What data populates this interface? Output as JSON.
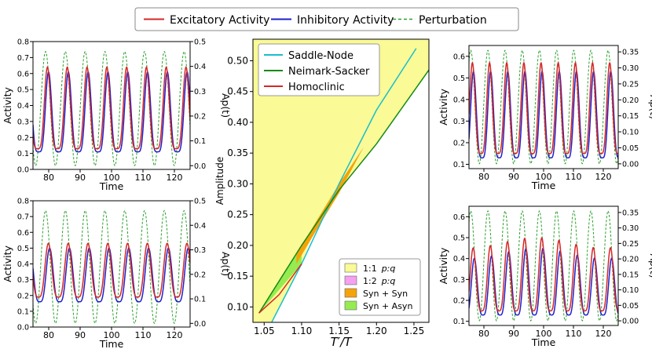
{
  "figure_legend": {
    "entries": [
      {
        "label": "Excitatory Activity",
        "color": "#d62728",
        "style": "solid"
      },
      {
        "label": "Inhibitory Activity",
        "color": "#1f1fcc",
        "style": "solid"
      },
      {
        "label": "Perturbation",
        "color": "#2ca02c",
        "style": "dashed"
      }
    ],
    "placement": "top-center"
  },
  "chart_data": [
    {
      "id": "top-left",
      "type": "line",
      "xlabel": "Time",
      "ylabel": "Activity",
      "y2label": "Ap(t)",
      "xlim": [
        75,
        125
      ],
      "ylim": [
        0.0,
        0.8
      ],
      "y2lim": [
        -0.015,
        0.5
      ],
      "xticks": [
        "80",
        "90",
        "100",
        "110",
        "120"
      ],
      "yticks": [
        "0.0",
        "0.1",
        "0.2",
        "0.3",
        "0.4",
        "0.5",
        "0.6",
        "0.7",
        "0.8"
      ],
      "y2ticks": [
        "0.0",
        "0.1",
        "0.2",
        "0.3",
        "0.4",
        "0.5"
      ],
      "period": 6.3,
      "phase": 79.0,
      "series": [
        {
          "name": "Excitatory Activity",
          "min": 0.13,
          "max": 0.64,
          "lag": 0.6,
          "sharp": 2.2
        },
        {
          "name": "Inhibitory Activity",
          "min": 0.11,
          "max": 0.61,
          "lag": 0.95,
          "sharp": 2.2
        },
        {
          "name": "Perturbation",
          "axis": "y2",
          "min": 0.0,
          "max": 0.46,
          "lag": 0.0,
          "sharp": 1.0
        }
      ]
    },
    {
      "id": "bottom-left",
      "type": "line",
      "xlabel": "Time",
      "ylabel": "Activity",
      "y2label": "Ap(t)",
      "xlim": [
        75,
        125
      ],
      "ylim": [
        0.0,
        0.8
      ],
      "y2lim": [
        -0.015,
        0.5
      ],
      "xticks": [
        "80",
        "90",
        "100",
        "110",
        "120"
      ],
      "yticks": [
        "0.0",
        "0.1",
        "0.2",
        "0.3",
        "0.4",
        "0.5",
        "0.6",
        "0.7",
        "0.8"
      ],
      "y2ticks": [
        "0.0",
        "0.1",
        "0.2",
        "0.3",
        "0.4",
        "0.5"
      ],
      "period": 6.3,
      "phase": 79.0,
      "series": [
        {
          "name": "Excitatory Activity",
          "min": 0.19,
          "max": 0.53,
          "lag": 0.9,
          "sharp": 1.8
        },
        {
          "name": "Inhibitory Activity",
          "min": 0.16,
          "max": 0.5,
          "lag": 1.3,
          "sharp": 1.8
        },
        {
          "name": "Perturbation",
          "axis": "y2",
          "min": 0.0,
          "max": 0.46,
          "lag": 0.0,
          "sharp": 1.0
        }
      ]
    },
    {
      "id": "top-right",
      "type": "line",
      "xlabel": "Time",
      "ylabel": "Activity",
      "y2label": "Ap(t)",
      "xlim": [
        75,
        125
      ],
      "ylim": [
        0.08,
        0.65
      ],
      "y2lim": [
        -0.015,
        0.37
      ],
      "xticks": [
        "80",
        "90",
        "100",
        "110",
        "120"
      ],
      "yticks": [
        "0.1",
        "0.2",
        "0.3",
        "0.4",
        "0.5",
        "0.6"
      ],
      "y2ticks": [
        "0.00",
        "0.05",
        "0.10",
        "0.15",
        "0.20",
        "0.25",
        "0.30",
        "0.35"
      ],
      "period": 5.75,
      "phase": 75.6,
      "series": [
        {
          "name": "Excitatory Activity",
          "min": 0.15,
          "max": 0.57,
          "lag": 0.55,
          "sharp": 2.0
        },
        {
          "name": "Inhibitory Activity",
          "min": 0.13,
          "max": 0.53,
          "lag": 0.9,
          "sharp": 2.0
        },
        {
          "name": "Perturbation",
          "axis": "y2",
          "min": 0.0,
          "max": 0.355,
          "lag": 0.0,
          "sharp": 1.0
        }
      ]
    },
    {
      "id": "bottom-right",
      "type": "line",
      "xlabel": "Time",
      "ylabel": "Activity",
      "y2label": "Ap(t)",
      "xlim": [
        75,
        125
      ],
      "ylim": [
        0.08,
        0.65
      ],
      "y2lim": [
        -0.015,
        0.37
      ],
      "xticks": [
        "80",
        "90",
        "100",
        "110",
        "120"
      ],
      "yticks": [
        "0.1",
        "0.2",
        "0.3",
        "0.4",
        "0.5",
        "0.6"
      ],
      "y2ticks": [
        "0.00",
        "0.05",
        "0.10",
        "0.15",
        "0.20",
        "0.25",
        "0.30",
        "0.35"
      ],
      "period": 5.75,
      "phase": 75.6,
      "series": [
        {
          "name": "Excitatory Activity",
          "min": 0.15,
          "max": 0.5,
          "lag": 0.8,
          "sharp": 1.8,
          "beat": 0.05
        },
        {
          "name": "Inhibitory Activity",
          "min": 0.13,
          "max": 0.45,
          "lag": 1.2,
          "sharp": 1.8,
          "beat": 0.05
        },
        {
          "name": "Perturbation",
          "axis": "y2",
          "min": 0.0,
          "max": 0.355,
          "lag": 0.0,
          "sharp": 1.0
        }
      ]
    },
    {
      "id": "bifurcation",
      "type": "area",
      "xlabel": "T′/T",
      "ylabel": "Amplitude",
      "xlim": [
        1.035,
        1.27
      ],
      "ylim": [
        0.075,
        0.535
      ],
      "xticks": [
        "1.05",
        "1.10",
        "1.15",
        "1.20",
        "1.25"
      ],
      "yticks": [
        "0.10",
        "0.15",
        "0.20",
        "0.25",
        "0.30",
        "0.35",
        "0.40",
        "0.45",
        "0.50"
      ],
      "background_region": "1:1  p:q",
      "curves": [
        {
          "name": "Saddle-Node",
          "color": "#17becf",
          "points": [
            [
              1.06,
              0.075
            ],
            [
              1.1,
              0.17
            ],
            [
              1.15,
              0.3
            ],
            [
              1.2,
              0.42
            ],
            [
              1.253,
              0.52
            ]
          ]
        },
        {
          "name": "Neimark-Sacker",
          "color": "#138a13",
          "points": [
            [
              1.043,
              0.09
            ],
            [
              1.1,
              0.2
            ],
            [
              1.15,
              0.29
            ],
            [
              1.2,
              0.365
            ],
            [
              1.27,
              0.485
            ]
          ]
        },
        {
          "name": "Homoclinic",
          "color": "#d62728",
          "points": [
            [
              1.043,
              0.09
            ],
            [
              1.07,
              0.12
            ],
            [
              1.1,
              0.17
            ]
          ]
        }
      ],
      "regions": [
        {
          "label": "1:1  p:q",
          "color": "#fafa96"
        },
        {
          "label": "1:2  p:q",
          "color": "#f5a0f0"
        },
        {
          "label": "Syn + Syn",
          "color": "#f5a30a"
        },
        {
          "label": "Syn + Asyn",
          "color": "#96eb50"
        }
      ],
      "syn_syn_band": {
        "lower": [
          [
            1.093,
            0.17
          ],
          [
            1.12,
            0.225
          ],
          [
            1.15,
            0.285
          ],
          [
            1.183,
            0.36
          ]
        ],
        "upper": [
          [
            1.183,
            0.36
          ],
          [
            1.15,
            0.3
          ],
          [
            1.12,
            0.24
          ],
          [
            1.093,
            0.185
          ]
        ]
      },
      "syn_asyn_wedge": [
        [
          1.043,
          0.09
        ],
        [
          1.1,
          0.2
        ],
        [
          1.1,
          0.17
        ]
      ],
      "curve_legend_placement": "top-left",
      "region_legend_placement": "bottom-right"
    }
  ]
}
